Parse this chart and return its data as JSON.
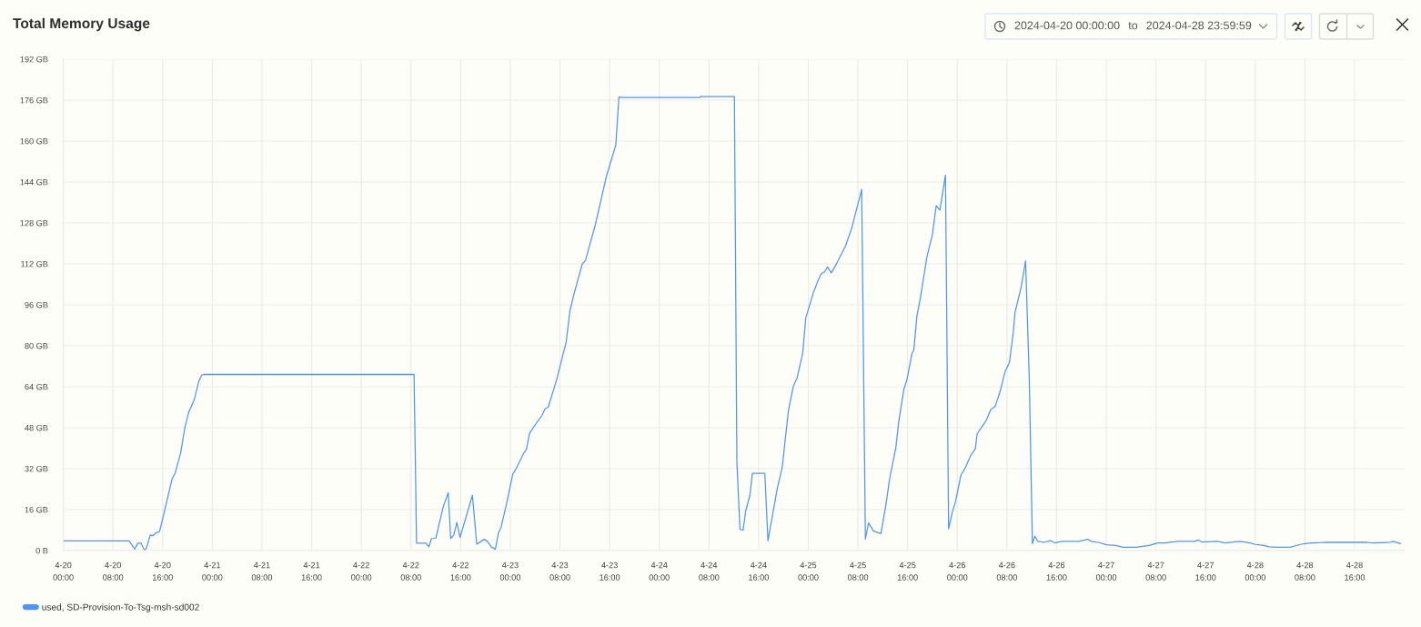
{
  "chart_data": {
    "type": "line",
    "title": "Total Memory Usage",
    "annotations": [
      "2024-04-20 00:00:00",
      "to",
      "2024-04-28 23:59:59"
    ],
    "x": [
      "2024-04-20T00:00",
      "2024-04-20T10:36",
      "2024-04-20T11:30",
      "2024-04-20T12:00",
      "2024-04-20T12:30",
      "2024-04-20T13:06",
      "2024-04-20T13:24",
      "2024-04-20T14:00",
      "2024-04-20T14:24",
      "2024-04-20T15:00",
      "2024-04-20T15:30",
      "2024-04-20T15:54",
      "2024-04-20T16:54",
      "2024-04-20T17:30",
      "2024-04-20T18:00",
      "2024-04-20T18:54",
      "2024-04-20T19:36",
      "2024-04-20T20:12",
      "2024-04-20T21:06",
      "2024-04-20T21:48",
      "2024-04-20T22:18",
      "2024-04-20T22:36",
      "2024-04-22T08:30",
      "2024-04-22T08:54",
      "2024-04-22T10:24",
      "2024-04-22T10:54",
      "2024-04-22T11:18",
      "2024-04-22T12:00",
      "2024-04-22T12:24",
      "2024-04-22T13:12",
      "2024-04-22T14:00",
      "2024-04-22T14:24",
      "2024-04-22T14:54",
      "2024-04-22T15:24",
      "2024-04-22T15:54",
      "2024-04-22T17:54",
      "2024-04-22T18:36",
      "2024-04-22T19:48",
      "2024-04-22T20:18",
      "2024-04-22T21:00",
      "2024-04-22T21:36",
      "2024-04-22T22:06",
      "2024-04-22T22:30",
      "2024-04-22T23:18",
      "2024-04-23T00:24",
      "2024-04-23T00:54",
      "2024-04-23T02:12",
      "2024-04-23T02:36",
      "2024-04-23T03:06",
      "2024-04-23T03:48",
      "2024-04-23T05:06",
      "2024-04-23T05:36",
      "2024-04-23T06:06",
      "2024-04-23T07:24",
      "2024-04-23T09:00",
      "2024-04-23T09:36",
      "2024-04-23T10:18",
      "2024-04-23T11:36",
      "2024-04-23T12:06",
      "2024-04-23T13:42",
      "2024-04-23T15:30",
      "2024-04-23T17:00",
      "2024-04-23T17:30",
      "2024-04-23T17:54",
      "2024-04-24T06:30",
      "2024-04-24T06:42",
      "2024-04-24T12:06",
      "2024-04-24T12:30",
      "2024-04-24T13:00",
      "2024-04-24T13:30",
      "2024-04-24T13:54",
      "2024-04-24T14:36",
      "2024-04-24T15:00",
      "2024-04-24T17:00",
      "2024-04-24T17:30",
      "2024-04-24T19:00",
      "2024-04-24T19:48",
      "2024-04-24T20:48",
      "2024-04-24T21:36",
      "2024-04-24T22:12",
      "2024-04-24T23:06",
      "2024-04-24T23:36",
      "2024-04-25T00:48",
      "2024-04-25T01:36",
      "2024-04-25T02:06",
      "2024-04-25T02:36",
      "2024-04-25T03:06",
      "2024-04-25T03:42",
      "2024-04-25T04:24",
      "2024-04-25T06:00",
      "2024-04-25T07:00",
      "2024-04-25T08:36",
      "2024-04-25T09:12",
      "2024-04-25T09:42",
      "2024-04-25T10:30",
      "2024-04-25T11:42",
      "2024-04-25T12:30",
      "2024-04-25T13:06",
      "2024-04-25T14:06",
      "2024-04-25T14:36",
      "2024-04-25T15:24",
      "2024-04-25T15:54",
      "2024-04-25T16:42",
      "2024-04-25T17:00",
      "2024-04-25T17:30",
      "2024-04-25T18:06",
      "2024-04-25T19:06",
      "2024-04-25T20:00",
      "2024-04-25T20:36",
      "2024-04-25T21:12",
      "2024-04-25T22:06",
      "2024-04-25T22:36",
      "2024-04-25T23:12",
      "2024-04-25T23:42",
      "2024-04-26T00:36",
      "2024-04-26T01:06",
      "2024-04-26T02:12",
      "2024-04-26T02:54",
      "2024-04-26T03:12",
      "2024-04-26T04:42",
      "2024-04-26T05:24",
      "2024-04-26T06:06",
      "2024-04-26T06:54",
      "2024-04-26T07:42",
      "2024-04-26T08:24",
      "2024-04-26T09:00",
      "2024-04-26T09:18",
      "2024-04-26T10:18",
      "2024-04-26T11:00",
      "2024-04-26T11:36",
      "2024-04-26T12:06",
      "2024-04-26T12:30",
      "2024-04-26T13:00",
      "2024-04-26T14:00",
      "2024-04-26T15:00",
      "2024-04-26T15:42",
      "2024-04-26T16:54",
      "2024-04-26T19:36",
      "2024-04-26T21:00",
      "2024-04-26T21:48",
      "2024-04-26T22:48",
      "2024-04-27T00:00",
      "2024-04-27T01:30",
      "2024-04-27T02:42",
      "2024-04-27T04:54",
      "2024-04-27T06:54",
      "2024-04-27T08:18",
      "2024-04-27T09:30",
      "2024-04-27T11:30",
      "2024-04-27T14:12",
      "2024-04-27T14:54",
      "2024-04-27T15:24",
      "2024-04-27T17:54",
      "2024-04-27T19:06",
      "2024-04-27T21:30",
      "2024-04-27T23:12",
      "2024-04-28T00:00",
      "2024-04-28T01:24",
      "2024-04-28T02:12",
      "2024-04-28T03:24",
      "2024-04-28T05:36",
      "2024-04-28T07:18",
      "2024-04-28T08:00",
      "2024-04-28T09:12",
      "2024-04-28T11:12",
      "2024-04-28T18:00",
      "2024-04-28T19:00",
      "2024-04-28T21:42",
      "2024-04-28T22:12",
      "2024-04-28T23:24"
    ],
    "series": [
      {
        "name": "used, SD-Provision-To-Tsg-msh-sd002",
        "color": "#5096f0",
        "values": [
          3.8,
          3.8,
          0.6,
          2.9,
          2.9,
          0.0,
          1.0,
          6.1,
          5.8,
          7.0,
          7.4,
          11.4,
          21.6,
          27.9,
          30.2,
          38.1,
          48.3,
          54.0,
          59.0,
          66.0,
          68.6,
          68.8,
          68.8,
          2.9,
          2.9,
          1.5,
          4.7,
          4.8,
          8.9,
          17.1,
          22.6,
          4.7,
          6.1,
          11.0,
          5.1,
          21.6,
          2.5,
          4.4,
          3.6,
          1.3,
          0.6,
          7.0,
          8.9,
          17.2,
          29.9,
          31.8,
          38.2,
          39.5,
          45.8,
          48.4,
          52.8,
          55.4,
          56.0,
          66.2,
          81.5,
          93.6,
          100.6,
          112.0,
          113.3,
          127.3,
          146.4,
          158.5,
          177.2,
          177.0,
          177.0,
          177.4,
          177.4,
          34.4,
          8.3,
          7.9,
          15.3,
          21.6,
          30.2,
          30.2,
          3.8,
          24.2,
          32.5,
          54.7,
          64.3,
          67.5,
          77.0,
          91.0,
          100.6,
          105.7,
          108.2,
          108.8,
          110.8,
          108.5,
          111.4,
          119.0,
          126.0,
          141.1,
          4.5,
          10.8,
          7.6,
          6.6,
          17.8,
          28.0,
          40.1,
          50.9,
          63.0,
          66.8,
          77.0,
          78.3,
          91.7,
          99.3,
          114.6,
          123.5,
          134.7,
          133.0,
          146.7,
          8.5,
          15.0,
          19.0,
          29.6,
          31.4,
          37.3,
          39.7,
          45.6,
          51.0,
          55.1,
          56.3,
          62.2,
          69.9,
          73.5,
          84.7,
          93.0,
          103.1,
          113.2,
          67.0,
          2.7,
          5.6,
          3.6,
          3.2,
          3.9,
          3.0,
          3.6,
          3.6,
          4.4,
          3.4,
          3.2,
          2.3,
          2.0,
          1.3,
          1.3,
          2.0,
          3.0,
          3.0,
          3.6,
          3.6,
          4.1,
          3.3,
          3.6,
          3.0,
          3.6,
          3.0,
          2.4,
          2.0,
          1.5,
          1.3,
          1.3,
          2.4,
          2.7,
          3.0,
          3.2,
          3.2,
          3.0,
          3.2,
          3.6,
          2.7
        ]
      }
    ],
    "xlim": [
      "2024-04-20T00:00",
      "2024-04-29T00:00"
    ],
    "xticks": [
      {
        "value": "2024-04-20T00:00",
        "label": "4-20\n00:00"
      },
      {
        "value": "2024-04-20T08:00",
        "label": "4-20\n08:00"
      },
      {
        "value": "2024-04-20T16:00",
        "label": "4-20\n16:00"
      },
      {
        "value": "2024-04-21T00:00",
        "label": "4-21\n00:00"
      },
      {
        "value": "2024-04-21T08:00",
        "label": "4-21\n08:00"
      },
      {
        "value": "2024-04-21T16:00",
        "label": "4-21\n16:00"
      },
      {
        "value": "2024-04-22T00:00",
        "label": "4-22\n00:00"
      },
      {
        "value": "2024-04-22T08:00",
        "label": "4-22\n08:00"
      },
      {
        "value": "2024-04-22T16:00",
        "label": "4-22\n16:00"
      },
      {
        "value": "2024-04-23T00:00",
        "label": "4-23\n00:00"
      },
      {
        "value": "2024-04-23T08:00",
        "label": "4-23\n08:00"
      },
      {
        "value": "2024-04-23T16:00",
        "label": "4-23\n16:00"
      },
      {
        "value": "2024-04-24T00:00",
        "label": "4-24\n00:00"
      },
      {
        "value": "2024-04-24T08:00",
        "label": "4-24\n08:00"
      },
      {
        "value": "2024-04-24T16:00",
        "label": "4-24\n16:00"
      },
      {
        "value": "2024-04-25T00:00",
        "label": "4-25\n00:00"
      },
      {
        "value": "2024-04-25T08:00",
        "label": "4-25\n08:00"
      },
      {
        "value": "2024-04-25T16:00",
        "label": "4-25\n16:00"
      },
      {
        "value": "2024-04-26T00:00",
        "label": "4-26\n00:00"
      },
      {
        "value": "2024-04-26T08:00",
        "label": "4-26\n08:00"
      },
      {
        "value": "2024-04-26T16:00",
        "label": "4-26\n16:00"
      },
      {
        "value": "2024-04-27T00:00",
        "label": "4-27\n00:00"
      },
      {
        "value": "2024-04-27T08:00",
        "label": "4-27\n08:00"
      },
      {
        "value": "2024-04-27T16:00",
        "label": "4-27\n16:00"
      },
      {
        "value": "2024-04-28T00:00",
        "label": "4-28\n00:00"
      },
      {
        "value": "2024-04-28T08:00",
        "label": "4-28\n08:00"
      },
      {
        "value": "2024-04-28T16:00",
        "label": "4-28\n16:00"
      }
    ],
    "ylim": [
      0,
      192
    ],
    "yticks": [
      {
        "value": 0,
        "label": "0 B"
      },
      {
        "value": 16,
        "label": "16 GB"
      },
      {
        "value": 32,
        "label": "32 GB"
      },
      {
        "value": 48,
        "label": "48 GB"
      },
      {
        "value": 64,
        "label": "64 GB"
      },
      {
        "value": 80,
        "label": "80 GB"
      },
      {
        "value": 96,
        "label": "96 GB"
      },
      {
        "value": 112,
        "label": "112 GB"
      },
      {
        "value": 128,
        "label": "128 GB"
      },
      {
        "value": 144,
        "label": "144 GB"
      },
      {
        "value": 160,
        "label": "160 GB"
      },
      {
        "value": 176,
        "label": "176 GB"
      },
      {
        "value": 192,
        "label": "192 GB"
      }
    ],
    "grid": true,
    "legend": "bottom left"
  }
}
